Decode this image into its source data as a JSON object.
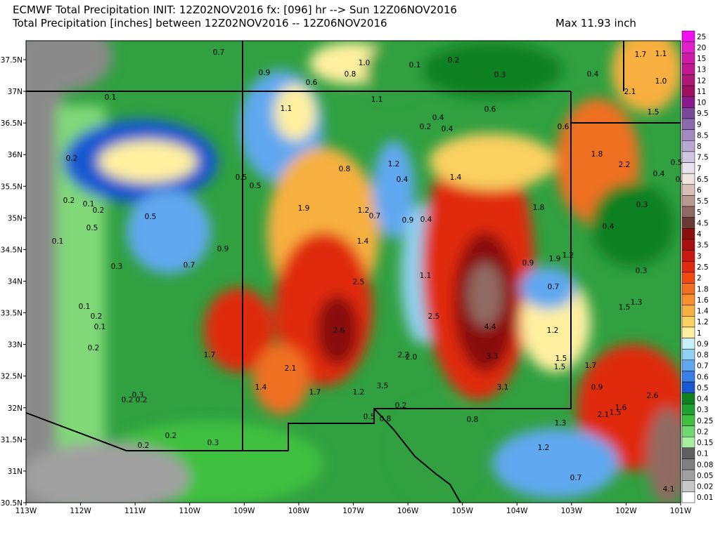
{
  "header": {
    "title": "ECMWF Total Precipitation INIT: 12Z02NOV2016 fx: [096] hr --> Sun 12Z06NOV2016",
    "subtitle": "Total Precipitation [inches] between 12Z02NOV2016 -- 12Z06NOV2016",
    "max": "Max 11.93 inch"
  },
  "lat_labels": [
    "37.5N",
    "37N",
    "36.5N",
    "36N",
    "35.5N",
    "35N",
    "34.5N",
    "34N",
    "33.5N",
    "33N",
    "32.5N",
    "32N",
    "31.5N",
    "31N",
    "30.5N"
  ],
  "lon_labels": [
    "113W",
    "112W",
    "111W",
    "110W",
    "109W",
    "108W",
    "107W",
    "106W",
    "105W",
    "104W",
    "103W",
    "102W",
    "101W"
  ],
  "colorbar": [
    {
      "label": "25",
      "color": "#f010f0"
    },
    {
      "label": "20",
      "color": "#e020c8"
    },
    {
      "label": "15",
      "color": "#d01aa8"
    },
    {
      "label": "13",
      "color": "#c01890"
    },
    {
      "label": "12",
      "color": "#b01878"
    },
    {
      "label": "11",
      "color": "#a01060"
    },
    {
      "label": "10",
      "color": "#8a1a8a"
    },
    {
      "label": "9.5",
      "color": "#7a4a9a"
    },
    {
      "label": "9",
      "color": "#8c6aae"
    },
    {
      "label": "8.5",
      "color": "#a28ac0"
    },
    {
      "label": "8",
      "color": "#b8a8d2"
    },
    {
      "label": "7.5",
      "color": "#d0c6e2"
    },
    {
      "label": "7",
      "color": "#e8e2ee"
    },
    {
      "label": "6.5",
      "color": "#f0e4e0"
    },
    {
      "label": "6",
      "color": "#d8c0b8"
    },
    {
      "label": "5.5",
      "color": "#b89a90"
    },
    {
      "label": "5",
      "color": "#906a62"
    },
    {
      "label": "4.5",
      "color": "#6a3a34"
    },
    {
      "label": "4",
      "color": "#8a1010"
    },
    {
      "label": "3.5",
      "color": "#a81010"
    },
    {
      "label": "3",
      "color": "#c81a10"
    },
    {
      "label": "2.5",
      "color": "#e02a10"
    },
    {
      "label": "2",
      "color": "#f04a10"
    },
    {
      "label": "1.8",
      "color": "#f07020"
    },
    {
      "label": "1.6",
      "color": "#f89030"
    },
    {
      "label": "1.4",
      "color": "#f8b040"
    },
    {
      "label": "1.2",
      "color": "#fad060"
    },
    {
      "label": "1",
      "color": "#fff0a0"
    },
    {
      "label": "0.9",
      "color": "#c8f0f8"
    },
    {
      "label": "0.8",
      "color": "#90d0f0"
    },
    {
      "label": "0.7",
      "color": "#60a8f0"
    },
    {
      "label": "0.6",
      "color": "#3880e8"
    },
    {
      "label": "0.5",
      "color": "#1858d0"
    },
    {
      "label": "0.4",
      "color": "#108020"
    },
    {
      "label": "0.3",
      "color": "#20a030"
    },
    {
      "label": "0.25",
      "color": "#40c040"
    },
    {
      "label": "0.2",
      "color": "#70d870"
    },
    {
      "label": "0.15",
      "color": "#a8f0a0"
    },
    {
      "label": "0.1",
      "color": "#606060"
    },
    {
      "label": "0.08",
      "color": "#808080"
    },
    {
      "label": "0.05",
      "color": "#a0a0a0"
    },
    {
      "label": "0.02",
      "color": "#c8c8c8"
    },
    {
      "label": "0.01",
      "color": "#ffffff"
    }
  ],
  "point_labels": [
    "0.7",
    "0.9",
    "0.6",
    "1.0",
    "0.8",
    "0.1",
    "0.2",
    "0.3",
    "0.4",
    "1.7",
    "1.1",
    "1.0",
    "2.1",
    "1.5",
    "0.1",
    "1.1",
    "1.1",
    "0.6",
    "0.4",
    "0.2",
    "0.4",
    "0.6",
    "0.2",
    "1.8",
    "2.2",
    "0.4",
    "0.5",
    "0.2",
    "0.8",
    "1.2",
    "0.4",
    "1.4",
    "0.5",
    "0.5",
    "0.2",
    "0.1",
    "0.2",
    "1.8",
    "0.3",
    "1.9",
    "1.2",
    "0.7",
    "0.9",
    "0.4",
    "0.5",
    "0.4",
    "0.5",
    "1.4",
    "0.1",
    "0.9",
    "0.9",
    "1.9",
    "1.2",
    "0.3",
    "0.7",
    "0.3",
    "1.1",
    "2.5",
    "0.7",
    "0.1",
    "1.5",
    "1.3",
    "0.2",
    "2.5",
    "4.4",
    "0.1",
    "2.6",
    "1.2",
    "0.2",
    "1.7",
    "2.2",
    "2.0",
    "3.3",
    "1.5",
    "1.5",
    "1.7",
    "2.1",
    "3.1",
    "0.9",
    "1.4",
    "1.7",
    "1.2",
    "3.5",
    "2.6",
    "0.3",
    "0.2",
    "0.2",
    "1.6",
    "1.5",
    "2.1",
    "0.2",
    "0.5",
    "0.8",
    "0.8",
    "1.3",
    "0.2",
    "0.3",
    "0.2",
    "1.2",
    "0.7",
    "4.1"
  ]
}
